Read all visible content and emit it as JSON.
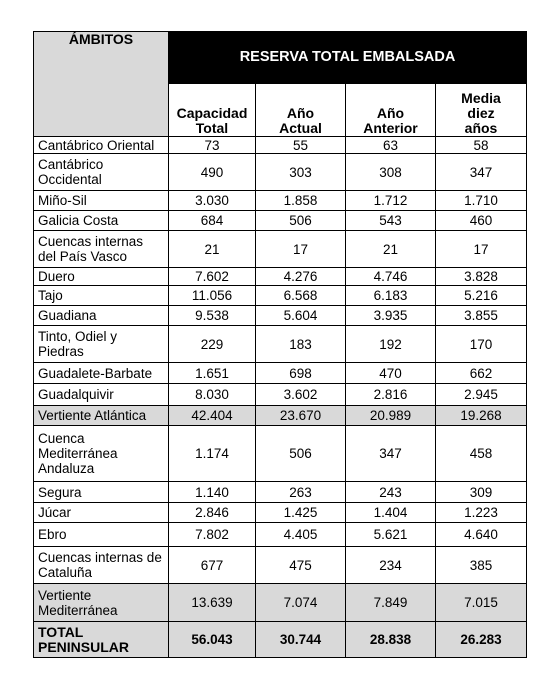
{
  "table": {
    "group_header": "RESERVA TOTAL EMBALSADA",
    "row_header": "ÁMBITOS",
    "columns": [
      {
        "line1": "Capacidad",
        "line2": "Total",
        "line3": ""
      },
      {
        "line1": "Año",
        "line2": "Actual",
        "line3": ""
      },
      {
        "line1": "Año",
        "line2": "Anterior",
        "line3": ""
      },
      {
        "line1": "Media",
        "line2": "diez",
        "line3": "años"
      }
    ],
    "rows": [
      {
        "name": "Cantábrico Oriental",
        "values": [
          "73",
          "55",
          "63",
          "58"
        ]
      },
      {
        "name": "Cantábrico Occidental",
        "values": [
          "490",
          "303",
          "308",
          "347"
        ]
      },
      {
        "name": "Miño-Sil",
        "values": [
          "3.030",
          "1.858",
          "1.712",
          "1.710"
        ]
      },
      {
        "name": "Galicia Costa",
        "values": [
          "684",
          "506",
          "543",
          "460"
        ]
      },
      {
        "name": "Cuencas internas del País Vasco",
        "values": [
          "21",
          "17",
          "21",
          "17"
        ]
      },
      {
        "name": "Duero",
        "values": [
          "7.602",
          "4.276",
          "4.746",
          "3.828"
        ]
      },
      {
        "name": "Tajo",
        "values": [
          "11.056",
          "6.568",
          "6.183",
          "5.216"
        ]
      },
      {
        "name": "Guadiana",
        "values": [
          "9.538",
          "5.604",
          "3.935",
          "3.855"
        ]
      },
      {
        "name": "Tinto, Odiel y Piedras",
        "values": [
          "229",
          "183",
          "192",
          "170"
        ]
      },
      {
        "name": "Guadalete-Barbate",
        "values": [
          "1.651",
          "698",
          "470",
          "662"
        ]
      },
      {
        "name": "Guadalquivir",
        "values": [
          "8.030",
          "3.602",
          "2.816",
          "2.945"
        ]
      },
      {
        "name": "Vertiente Atlántica",
        "values": [
          "42.404",
          "23.670",
          "20.989",
          "19.268"
        ]
      },
      {
        "name": "Cuenca Mediterránea Andaluza",
        "values": [
          "1.174",
          "506",
          "347",
          "458"
        ]
      },
      {
        "name": "Segura",
        "values": [
          "1.140",
          "263",
          "243",
          "309"
        ]
      },
      {
        "name": "Júcar",
        "values": [
          "2.846",
          "1.425",
          "1.404",
          "1.223"
        ]
      },
      {
        "name": "Ebro",
        "values": [
          "7.802",
          "4.405",
          "5.621",
          "4.640"
        ]
      },
      {
        "name": "Cuencas internas de Cataluña",
        "values": [
          "677",
          "475",
          "234",
          "385"
        ]
      },
      {
        "name": "Vertiente Mediterránea",
        "values": [
          "13.639",
          "7.074",
          "7.849",
          "7.015"
        ]
      },
      {
        "name": "TOTAL PENINSULAR",
        "values": [
          "56.043",
          "30.744",
          "28.838",
          "26.283"
        ]
      }
    ]
  }
}
